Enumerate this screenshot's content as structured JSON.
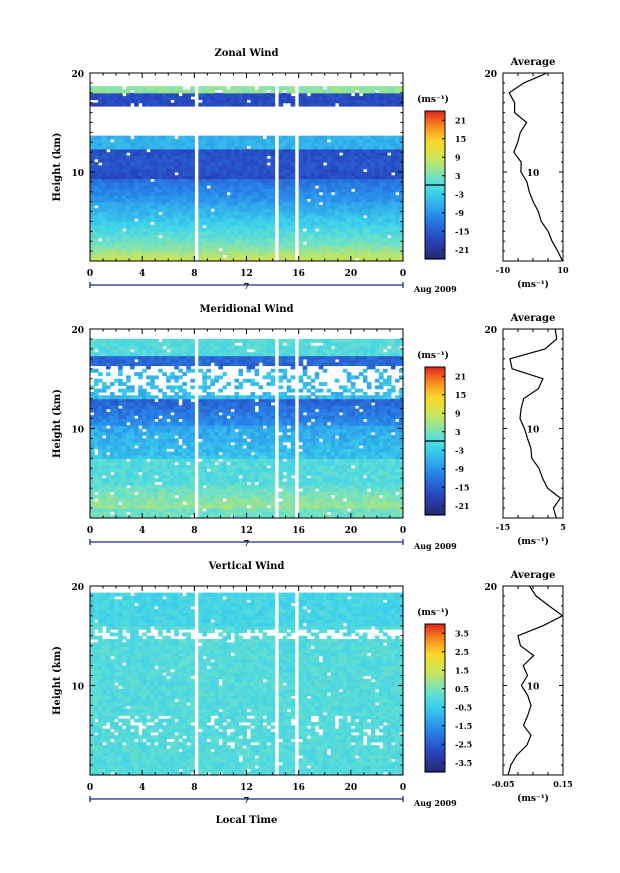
{
  "figure": {
    "xlabel": "Local Time",
    "date_label": "Aug 2009",
    "day_label": "7",
    "ylabel": "Height (km)",
    "avg_title": "Average",
    "unit": "(ms⁻¹)"
  },
  "chart_data": [
    {
      "type": "heatmap",
      "title": "Zonal Wind",
      "xlabel": "Local Time",
      "ylabel": "Height (km)",
      "xlim": [
        0,
        24
      ],
      "ylim": [
        1,
        20
      ],
      "x_ticks": [
        "0",
        "4",
        "8",
        "12",
        "16",
        "20",
        "0"
      ],
      "y_ticks": [
        "20",
        "10"
      ],
      "colorbar": {
        "unit": "(ms⁻¹)",
        "range": [
          -24,
          24
        ],
        "ticks": [
          "21",
          "15",
          "9",
          "3",
          "-3",
          "-9",
          "-15",
          "-21"
        ],
        "zero_line": true
      },
      "profile": {
        "title": "Average",
        "xlabel": "(ms⁻¹)",
        "xlim": [
          -10,
          10
        ],
        "x_ticks": [
          "-10",
          "10"
        ],
        "height": [
          1,
          2,
          3,
          4,
          5,
          6,
          7,
          8,
          9,
          10,
          11,
          12,
          13,
          14,
          15,
          16,
          17,
          18,
          19,
          20
        ],
        "value": [
          10,
          8,
          6,
          5,
          3,
          2,
          0,
          -1,
          -2,
          -4,
          -4,
          -6,
          -5,
          -4,
          -2,
          -6,
          -6,
          -8,
          -3,
          5
        ]
      }
    },
    {
      "type": "heatmap",
      "title": "Meridional Wind",
      "xlabel": "Local Time",
      "ylabel": "Height (km)",
      "xlim": [
        0,
        24
      ],
      "ylim": [
        1,
        20
      ],
      "x_ticks": [
        "0",
        "4",
        "8",
        "12",
        "16",
        "20",
        "0"
      ],
      "y_ticks": [
        "20",
        "10"
      ],
      "colorbar": {
        "unit": "(ms⁻¹)",
        "range": [
          -24,
          24
        ],
        "ticks": [
          "21",
          "15",
          "9",
          "3",
          "-3",
          "-9",
          "-15",
          "-21"
        ],
        "zero_line": true
      },
      "profile": {
        "title": "Average",
        "xlabel": "(ms⁻¹)",
        "xlim": [
          -15,
          5
        ],
        "x_ticks": [
          "-15",
          "5"
        ],
        "height": [
          1,
          2,
          3,
          4,
          5,
          6,
          7,
          8,
          9,
          10,
          11,
          12,
          13,
          14,
          15,
          16,
          17,
          18,
          19,
          20
        ],
        "value": [
          3,
          2,
          4,
          0,
          -2,
          -3,
          -5,
          -6,
          -7,
          -8,
          -9,
          -9,
          -8,
          -3,
          -2,
          -12,
          -13,
          -1,
          3,
          2
        ]
      }
    },
    {
      "type": "heatmap",
      "title": "Vertical Wind",
      "xlabel": "Local Time",
      "ylabel": "Height (km)",
      "xlim": [
        0,
        24
      ],
      "ylim": [
        1,
        20
      ],
      "x_ticks": [
        "0",
        "4",
        "8",
        "12",
        "16",
        "20",
        "0"
      ],
      "y_ticks": [
        "20",
        "10"
      ],
      "colorbar": {
        "unit": "(ms⁻¹)",
        "range": [
          -4,
          4
        ],
        "ticks": [
          "3.5",
          "2.5",
          "1.5",
          "0.5",
          "-0.5",
          "-1.5",
          "-2.5",
          "-3.5"
        ],
        "zero_line": false
      },
      "profile": {
        "title": "Average",
        "xlabel": "(ms⁻¹)",
        "xlim": [
          -0.05,
          0.15
        ],
        "x_ticks": [
          "-0.05",
          "0.15"
        ],
        "height": [
          1,
          2,
          3,
          4,
          5,
          6,
          7,
          8,
          9,
          10,
          11,
          12,
          13,
          14,
          15,
          16,
          17,
          18,
          19,
          20
        ],
        "value": [
          -0.03,
          -0.02,
          0.0,
          0.03,
          0.04,
          0.02,
          0.03,
          0.04,
          0.03,
          0.01,
          0.03,
          0.02,
          0.05,
          0.01,
          0.0,
          0.08,
          0.15,
          0.1,
          0.06,
          0.04
        ]
      }
    }
  ]
}
